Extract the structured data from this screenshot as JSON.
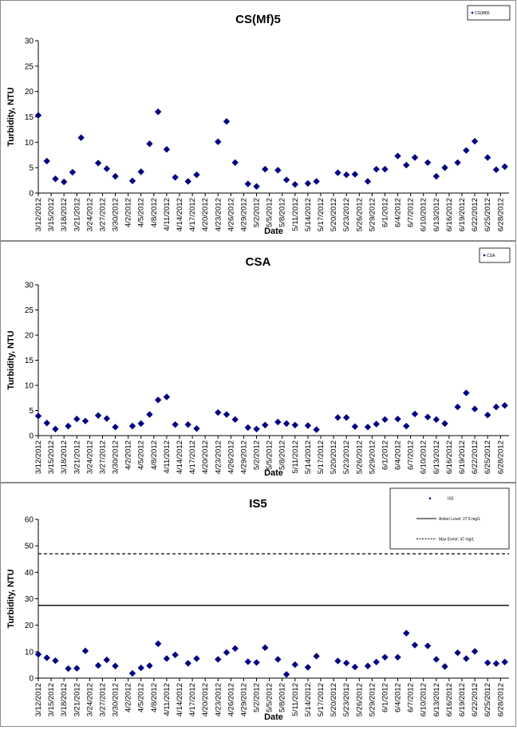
{
  "chart_data": [
    {
      "type": "scatter",
      "title": "CS(Mf)5",
      "xlabel": "Date",
      "ylabel": "Turbidity, NTU",
      "ylim": [
        0,
        30
      ],
      "yticks": [
        0,
        5,
        10,
        15,
        20,
        25,
        30
      ],
      "xlim": [
        "2012-03-12",
        "2012-06-30"
      ],
      "xtick_labels": [
        "3/12/2012",
        "3/15/2012",
        "3/18/2012",
        "3/21/2012",
        "3/24/2012",
        "3/27/2012",
        "3/30/2012",
        "4/2/2012",
        "4/5/2012",
        "4/8/2012",
        "4/11/2012",
        "4/14/2012",
        "4/17/2012",
        "4/20/2012",
        "4/23/2012",
        "4/26/2012",
        "4/29/2012",
        "5/2/2012",
        "5/5/2012",
        "5/8/2012",
        "5/11/2012",
        "5/14/2012",
        "5/17/2012",
        "5/20/2012",
        "5/23/2012",
        "5/26/2012",
        "5/29/2012",
        "6/1/2012",
        "6/4/2012",
        "6/7/2012",
        "6/10/2012",
        "6/13/2012",
        "6/16/2012",
        "6/19/2012",
        "6/22/2012",
        "6/25/2012",
        "6/28/2012"
      ],
      "legend": "top-right",
      "series": [
        {
          "name": "CS(Mf)5",
          "color": "#000080",
          "x": [
            "2012-03-12",
            "2012-03-14",
            "2012-03-16",
            "2012-03-18",
            "2012-03-20",
            "2012-03-22",
            "2012-03-26",
            "2012-03-28",
            "2012-03-30",
            "2012-04-03",
            "2012-04-05",
            "2012-04-07",
            "2012-04-09",
            "2012-04-11",
            "2012-04-13",
            "2012-04-16",
            "2012-04-18",
            "2012-04-23",
            "2012-04-25",
            "2012-04-27",
            "2012-04-30",
            "2012-05-02",
            "2012-05-04",
            "2012-05-07",
            "2012-05-09",
            "2012-05-11",
            "2012-05-14",
            "2012-05-16",
            "2012-05-21",
            "2012-05-23",
            "2012-05-25",
            "2012-05-28",
            "2012-05-30",
            "2012-06-01",
            "2012-06-04",
            "2012-06-06",
            "2012-06-08",
            "2012-06-11",
            "2012-06-13",
            "2012-06-15",
            "2012-06-18",
            "2012-06-20",
            "2012-06-22",
            "2012-06-25",
            "2012-06-27",
            "2012-06-29"
          ],
          "y": [
            15.3,
            6.3,
            2.8,
            2.2,
            4.1,
            10.9,
            5.9,
            4.8,
            3.3,
            2.4,
            4.2,
            9.7,
            16,
            8.6,
            3.1,
            2.3,
            3.6,
            10.1,
            14.1,
            6,
            1.8,
            1.3,
            4.7,
            4.5,
            2.6,
            1.7,
            1.9,
            2.3,
            4,
            3.6,
            3.7,
            2.3,
            4.7,
            4.7,
            7.3,
            5.5,
            7,
            6,
            3.3,
            5,
            6,
            8.4,
            10.2,
            7,
            4.6,
            5.2
          ]
        }
      ]
    },
    {
      "type": "scatter",
      "title": "CSA",
      "xlabel": "Date",
      "ylabel": "Turbidity, NTU",
      "ylim": [
        0,
        30
      ],
      "yticks": [
        0,
        5,
        10,
        15,
        20,
        25,
        30
      ],
      "xlim": [
        "2012-03-12",
        "2012-06-30"
      ],
      "xtick_labels": [
        "3/12/2012",
        "3/15/2012",
        "3/18/2012",
        "3/21/2012",
        "3/24/2012",
        "3/27/2012",
        "3/30/2012",
        "4/2/2012",
        "4/5/2012",
        "4/8/2012",
        "4/11/2012",
        "4/14/2012",
        "4/17/2012",
        "4/20/2012",
        "4/23/2012",
        "4/26/2012",
        "4/29/2012",
        "5/2/2012",
        "5/5/2012",
        "5/8/2012",
        "5/11/2012",
        "5/14/2012",
        "5/17/2012",
        "5/20/2012",
        "5/23/2012",
        "5/26/2012",
        "5/29/2012",
        "6/1/2012",
        "6/4/2012",
        "6/7/2012",
        "6/10/2012",
        "6/13/2012",
        "6/16/2012",
        "6/19/2012",
        "6/22/2012",
        "6/25/2012",
        "6/28/2012"
      ],
      "legend": "top-right",
      "series": [
        {
          "name": "CSA",
          "color": "#000080",
          "x": [
            "2012-03-12",
            "2012-03-14",
            "2012-03-16",
            "2012-03-19",
            "2012-03-21",
            "2012-03-23",
            "2012-03-26",
            "2012-03-28",
            "2012-03-30",
            "2012-04-03",
            "2012-04-05",
            "2012-04-07",
            "2012-04-09",
            "2012-04-11",
            "2012-04-13",
            "2012-04-16",
            "2012-04-18",
            "2012-04-23",
            "2012-04-25",
            "2012-04-27",
            "2012-04-30",
            "2012-05-02",
            "2012-05-04",
            "2012-05-07",
            "2012-05-09",
            "2012-05-11",
            "2012-05-14",
            "2012-05-16",
            "2012-05-21",
            "2012-05-23",
            "2012-05-25",
            "2012-05-28",
            "2012-05-30",
            "2012-06-01",
            "2012-06-04",
            "2012-06-06",
            "2012-06-08",
            "2012-06-11",
            "2012-06-13",
            "2012-06-15",
            "2012-06-18",
            "2012-06-20",
            "2012-06-22",
            "2012-06-25",
            "2012-06-27",
            "2012-06-29"
          ],
          "y": [
            3.9,
            2.5,
            1.3,
            1.9,
            3.3,
            2.9,
            4,
            3.4,
            1.7,
            1.9,
            2.4,
            4.2,
            7.1,
            7.7,
            2.2,
            2.2,
            1.4,
            4.6,
            4.2,
            3.2,
            1.6,
            1.3,
            2.1,
            2.7,
            2.4,
            2.1,
            2,
            1.2,
            3.6,
            3.6,
            1.8,
            1.7,
            2.3,
            3.2,
            3.3,
            1.9,
            4.3,
            3.7,
            3.2,
            2.4,
            5.7,
            8.5,
            5.3,
            4.1,
            5.7,
            6
          ]
        }
      ]
    },
    {
      "type": "scatter",
      "title": "IS5",
      "xlabel": "Date",
      "ylabel": "Turbidity, NTU",
      "ylim": [
        0,
        60
      ],
      "yticks": [
        0,
        10,
        20,
        30,
        40,
        50,
        60
      ],
      "xlim": [
        "2012-03-12",
        "2012-06-30"
      ],
      "xtick_labels": [
        "3/12/2012",
        "3/15/2012",
        "3/18/2012",
        "3/21/2012",
        "3/24/2012",
        "3/27/2012",
        "3/30/2012",
        "4/2/2012",
        "4/5/2012",
        "4/8/2012",
        "4/11/2012",
        "4/14/2012",
        "4/17/2012",
        "4/20/2012",
        "4/23/2012",
        "4/26/2012",
        "4/29/2012",
        "5/2/2012",
        "5/5/2012",
        "5/8/2012",
        "5/11/2012",
        "5/14/2012",
        "5/17/2012",
        "5/20/2012",
        "5/23/2012",
        "5/26/2012",
        "5/29/2012",
        "6/1/2012",
        "6/4/2012",
        "6/7/2012",
        "6/10/2012",
        "6/13/2012",
        "6/16/2012",
        "6/19/2012",
        "6/22/2012",
        "6/25/2012",
        "6/28/2012"
      ],
      "legend": "top-right",
      "series": [
        {
          "name": "IS5",
          "color": "#000080",
          "x": [
            "2012-03-12",
            "2012-03-14",
            "2012-03-16",
            "2012-03-19",
            "2012-03-21",
            "2012-03-23",
            "2012-03-26",
            "2012-03-28",
            "2012-03-30",
            "2012-04-03",
            "2012-04-05",
            "2012-04-07",
            "2012-04-09",
            "2012-04-11",
            "2012-04-13",
            "2012-04-16",
            "2012-04-18",
            "2012-04-23",
            "2012-04-25",
            "2012-04-27",
            "2012-04-30",
            "2012-05-02",
            "2012-05-04",
            "2012-05-07",
            "2012-05-09",
            "2012-05-11",
            "2012-05-14",
            "2012-05-16",
            "2012-05-21",
            "2012-05-23",
            "2012-05-25",
            "2012-05-28",
            "2012-05-30",
            "2012-06-01",
            "2012-06-04",
            "2012-06-06",
            "2012-06-08",
            "2012-06-11",
            "2012-06-13",
            "2012-06-15",
            "2012-06-18",
            "2012-06-20",
            "2012-06-22",
            "2012-06-25",
            "2012-06-27",
            "2012-06-29"
          ],
          "y": [
            9,
            7.7,
            6.6,
            3.6,
            3.7,
            10.3,
            4.8,
            6.9,
            4.6,
            1.8,
            3.9,
            4.7,
            13,
            7.4,
            8.8,
            5.6,
            7.4,
            7.1,
            9.7,
            11.2,
            6.2,
            5.9,
            11.5,
            7.1,
            1.4,
            5.1,
            4.1,
            8.3,
            6.5,
            5.7,
            4.2,
            4.6,
            6.1,
            7.9,
            7.9,
            17,
            12.5,
            12.2,
            7.1,
            4.4,
            9.6,
            7.4,
            10.1,
            5.8,
            5.5,
            6.1
          ]
        }
      ],
      "reference_lines": [
        {
          "name": "Action Level: 27.5 mg/L",
          "value": 27.5,
          "style": "solid"
        },
        {
          "name": "Max Event: 47 mg/L",
          "value": 47,
          "style": "dashed"
        }
      ]
    }
  ]
}
